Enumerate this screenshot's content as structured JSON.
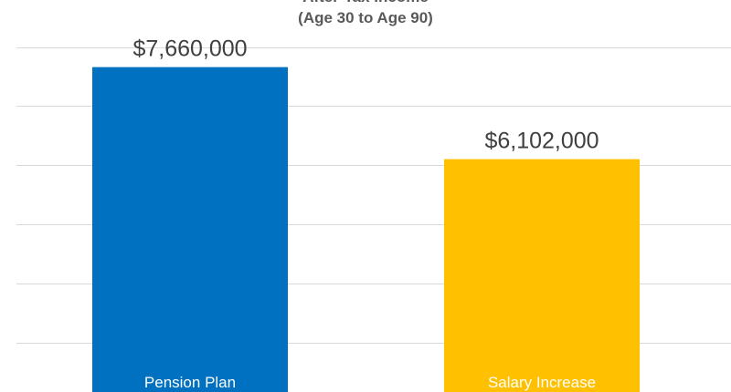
{
  "chart_data": {
    "type": "bar",
    "title": "After-Tax Income",
    "subtitle": "(Age 30 to Age 90)",
    "categories": [
      "Pension Plan",
      "Salary Increase"
    ],
    "values": [
      7660000,
      6102000
    ],
    "data_labels": [
      "$7,660,000",
      "$6,102,000"
    ],
    "colors": [
      "#0070C0",
      "#FFC000"
    ],
    "ylim": [
      0,
      8000000
    ],
    "grid": true,
    "legend": "none"
  }
}
